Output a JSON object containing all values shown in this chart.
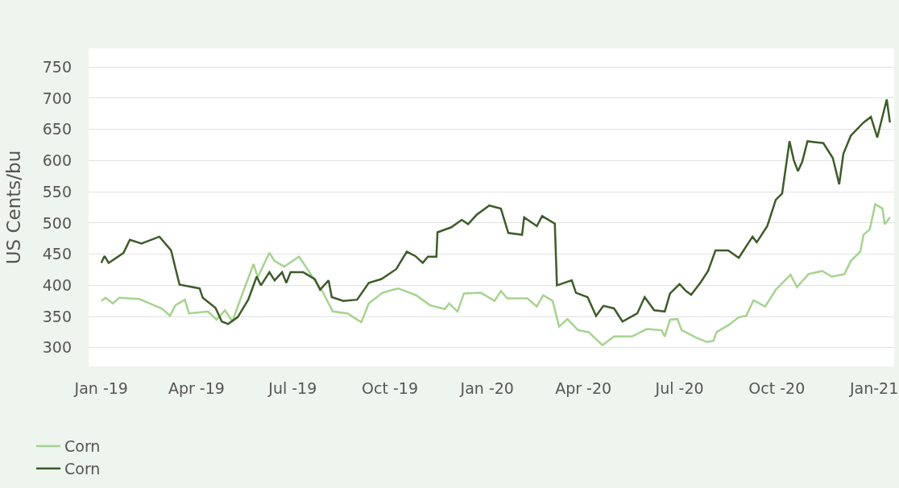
{
  "chart_data": {
    "type": "line",
    "ylabel": "US Cents/bu",
    "xlim": [
      "2018-12-20",
      "2021-01-20"
    ],
    "ylim": [
      270,
      780
    ],
    "xticks": [
      {
        "value": "2019-01-01",
        "label": "Jan -19"
      },
      {
        "value": "2019-04-01",
        "label": "Apr -19"
      },
      {
        "value": "2019-07-01",
        "label": "Jul -19"
      },
      {
        "value": "2019-10-01",
        "label": "Oct -19"
      },
      {
        "value": "2020-01-01",
        "label": "Jan -20"
      },
      {
        "value": "2020-04-01",
        "label": "Apr -20"
      },
      {
        "value": "2020-07-01",
        "label": "Jul -20"
      },
      {
        "value": "2020-10-01",
        "label": "Oct -20"
      },
      {
        "value": "2021-01-01",
        "label": "Jan-21"
      }
    ],
    "yticks": [
      300,
      350,
      400,
      450,
      500,
      550,
      600,
      650,
      700,
      750
    ],
    "grid": "y",
    "legend": "bottom left",
    "line_style": "solid",
    "marker": "none",
    "series": [
      {
        "name": "Corn",
        "color": "#a6d38f",
        "x": [
          "2019-01-01",
          "2019-01-05",
          "2019-01-12",
          "2019-01-18",
          "2019-02-06",
          "2019-02-20",
          "2019-02-28",
          "2019-03-07",
          "2019-03-12",
          "2019-03-21",
          "2019-03-25",
          "2019-04-12",
          "2019-04-20",
          "2019-04-28",
          "2019-05-05",
          "2019-05-13",
          "2019-05-25",
          "2019-05-29",
          "2019-06-09",
          "2019-06-14",
          "2019-06-23",
          "2019-07-07",
          "2019-07-15",
          "2019-07-21",
          "2019-07-29",
          "2019-08-08",
          "2019-08-22",
          "2019-08-31",
          "2019-09-04",
          "2019-09-11",
          "2019-09-24",
          "2019-10-04",
          "2019-10-09",
          "2019-10-26",
          "2019-11-08",
          "2019-11-22",
          "2019-11-26",
          "2019-12-04",
          "2019-12-10",
          "2019-12-26",
          "2020-01-08",
          "2020-01-14",
          "2020-01-20",
          "2020-02-08",
          "2020-02-17",
          "2020-02-23",
          "2020-03-03",
          "2020-03-09",
          "2020-03-17",
          "2020-03-27",
          "2020-04-06",
          "2020-04-19",
          "2020-04-30",
          "2020-05-17",
          "2020-05-31",
          "2020-06-14",
          "2020-06-17",
          "2020-06-22",
          "2020-06-29",
          "2020-07-03",
          "2020-07-17",
          "2020-07-27",
          "2020-08-02",
          "2020-08-05",
          "2020-08-17",
          "2020-08-26",
          "2020-09-02",
          "2020-09-09",
          "2020-09-20",
          "2020-09-30",
          "2020-10-14",
          "2020-10-20",
          "2020-10-31",
          "2020-11-13",
          "2020-11-22",
          "2020-12-04",
          "2020-12-10",
          "2020-12-19",
          "2020-12-22",
          "2020-12-28",
          "2021-01-02",
          "2021-01-09",
          "2021-01-11",
          "2021-01-16"
        ],
        "values": [
          375,
          380,
          371,
          380,
          378,
          368,
          362,
          351,
          368,
          377,
          355,
          358,
          345,
          360,
          342,
          380,
          434,
          413,
          452,
          439,
          430,
          446,
          426,
          410,
          391,
          358,
          355,
          345,
          341,
          371,
          388,
          393,
          395,
          384,
          368,
          362,
          371,
          358,
          387,
          388,
          375,
          391,
          379,
          379,
          366,
          384,
          375,
          334,
          346,
          328,
          325,
          304,
          318,
          318,
          330,
          328,
          318,
          345,
          346,
          328,
          316,
          309,
          311,
          325,
          337,
          349,
          351,
          376,
          366,
          393,
          417,
          397,
          418,
          423,
          414,
          418,
          439,
          454,
          481,
          490,
          530,
          523,
          498,
          509
        ]
      },
      {
        "name": "Corn",
        "color": "#3d5c2a",
        "x": [
          "2019-01-01",
          "2019-01-04",
          "2019-01-08",
          "2019-01-22",
          "2019-01-28",
          "2019-02-08",
          "2019-02-25",
          "2019-03-08",
          "2019-03-16",
          "2019-04-04",
          "2019-04-07",
          "2019-04-19",
          "2019-04-25",
          "2019-05-01",
          "2019-05-10",
          "2019-05-20",
          "2019-05-28",
          "2019-06-01",
          "2019-06-09",
          "2019-06-14",
          "2019-06-21",
          "2019-06-25",
          "2019-06-29",
          "2019-07-11",
          "2019-07-22",
          "2019-07-27",
          "2019-08-04",
          "2019-08-07",
          "2019-08-18",
          "2019-08-31",
          "2019-09-11",
          "2019-09-23",
          "2019-10-07",
          "2019-10-17",
          "2019-10-25",
          "2019-11-01",
          "2019-11-06",
          "2019-11-14",
          "2019-11-15",
          "2019-11-28",
          "2019-12-08",
          "2019-12-14",
          "2019-12-22",
          "2020-01-03",
          "2020-01-14",
          "2020-01-21",
          "2020-02-03",
          "2020-02-05",
          "2020-02-17",
          "2020-02-22",
          "2020-03-05",
          "2020-03-07",
          "2020-03-21",
          "2020-03-25",
          "2020-04-05",
          "2020-04-13",
          "2020-04-20",
          "2020-04-30",
          "2020-05-08",
          "2020-05-22",
          "2020-05-29",
          "2020-06-07",
          "2020-06-17",
          "2020-06-22",
          "2020-07-01",
          "2020-07-07",
          "2020-07-12",
          "2020-07-21",
          "2020-07-28",
          "2020-08-04",
          "2020-08-16",
          "2020-08-26",
          "2020-09-08",
          "2020-09-12",
          "2020-09-22",
          "2020-09-30",
          "2020-10-06",
          "2020-10-13",
          "2020-10-17",
          "2020-10-21",
          "2020-10-25",
          "2020-10-30",
          "2020-11-14",
          "2020-11-23",
          "2020-11-29",
          "2020-12-03",
          "2020-12-10",
          "2020-12-22",
          "2020-12-29",
          "2021-01-04",
          "2021-01-13",
          "2021-01-16"
        ],
        "values": [
          436,
          447,
          436,
          452,
          473,
          467,
          478,
          456,
          401,
          395,
          380,
          364,
          342,
          338,
          349,
          377,
          414,
          400,
          421,
          408,
          421,
          404,
          421,
          421,
          410,
          393,
          408,
          381,
          375,
          377,
          404,
          410,
          426,
          454,
          447,
          436,
          446,
          446,
          485,
          493,
          505,
          498,
          513,
          528,
          523,
          484,
          481,
          509,
          495,
          511,
          499,
          400,
          408,
          388,
          381,
          351,
          367,
          363,
          342,
          355,
          381,
          360,
          358,
          387,
          402,
          391,
          385,
          405,
          423,
          456,
          456,
          444,
          478,
          469,
          495,
          537,
          547,
          631,
          601,
          583,
          598,
          631,
          628,
          604,
          562,
          611,
          640,
          661,
          670,
          637,
          698,
          661
        ]
      }
    ]
  }
}
